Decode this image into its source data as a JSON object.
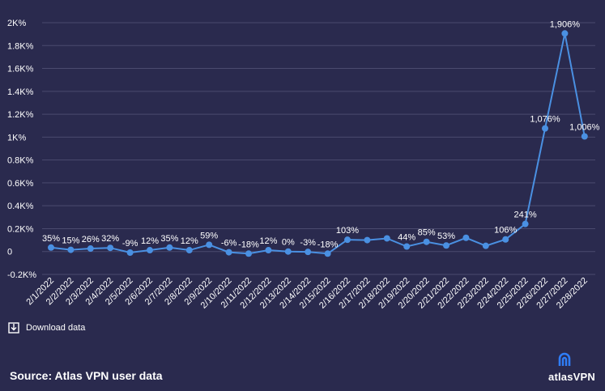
{
  "chart_data": {
    "type": "line",
    "title": "",
    "xlabel": "",
    "ylabel": "",
    "ylim": [
      -200,
      2000
    ],
    "y_ticks": [
      {
        "value": 2000,
        "label": "2K%"
      },
      {
        "value": 1800,
        "label": "1.8K%"
      },
      {
        "value": 1600,
        "label": "1.6K%"
      },
      {
        "value": 1400,
        "label": "1.4K%"
      },
      {
        "value": 1200,
        "label": "1.2K%"
      },
      {
        "value": 1000,
        "label": "1K%"
      },
      {
        "value": 800,
        "label": "0.8K%"
      },
      {
        "value": 600,
        "label": "0.6K%"
      },
      {
        "value": 400,
        "label": "0.4K%"
      },
      {
        "value": 200,
        "label": "0.2K%"
      },
      {
        "value": 0,
        "label": "0"
      },
      {
        "value": -200,
        "label": "-0.2K%"
      }
    ],
    "grid": true,
    "categories": [
      "2/1/2022",
      "2/2/2022",
      "2/3/2022",
      "2/4/2022",
      "2/5/2022",
      "2/6/2022",
      "2/7/2022",
      "2/8/2022",
      "2/9/2022",
      "2/10/2022",
      "2/11/2022",
      "2/12/2022",
      "2/13/2022",
      "2/14/2022",
      "2/15/2022",
      "2/16/2022",
      "2/17/2022",
      "2/18/2022",
      "2/19/2022",
      "2/20/2022",
      "2/21/2022",
      "2/22/2022",
      "2/23/2022",
      "2/24/2022",
      "2/25/2022",
      "2/26/2022",
      "2/27/2022",
      "2/28/2022"
    ],
    "series": [
      {
        "values": [
          35,
          15,
          26,
          32,
          -9,
          12,
          35,
          12,
          59,
          -6,
          -18,
          12,
          0,
          -3,
          -18,
          103,
          100,
          115,
          44,
          85,
          53,
          120,
          50,
          106,
          241,
          1076,
          1906,
          1006
        ],
        "data_labels": [
          "35%",
          "15%",
          "26%",
          "32%",
          "-9%",
          "12%",
          "35%",
          "12%",
          "59%",
          "-6%",
          "-18%",
          "12%",
          "0%",
          "-3%",
          "-18%",
          "103%",
          "",
          "",
          "44%",
          "85%",
          "53%",
          "",
          "",
          "106%",
          "241%",
          "1,076%",
          "1,906%",
          "1,006%"
        ]
      }
    ],
    "line_color": "#4a90e2",
    "grid_color": "#4a4a6e"
  },
  "download_label": "Download data",
  "source_text": "Source: Atlas VPN user data",
  "brand": {
    "name_part1": "atlas",
    "name_part2": "VPN"
  }
}
